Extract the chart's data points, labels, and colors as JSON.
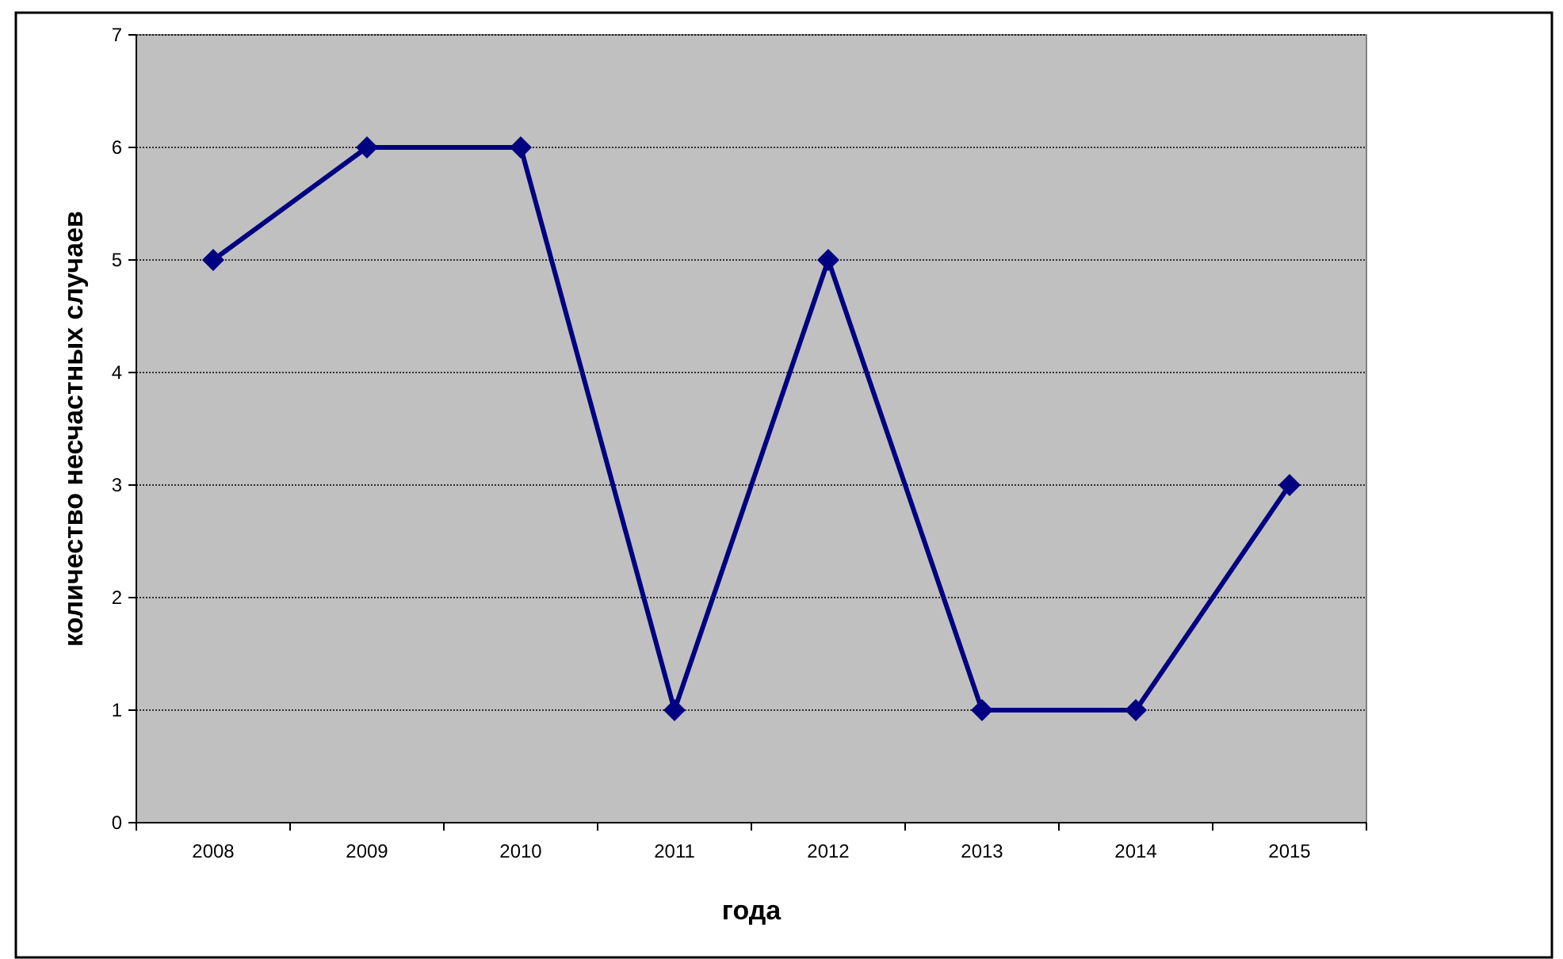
{
  "chart_data": {
    "type": "line",
    "xlabel": "года",
    "ylabel": "количество несчастных случаев",
    "categories": [
      "2008",
      "2009",
      "2010",
      "2011",
      "2012",
      "2013",
      "2014",
      "2015"
    ],
    "series": [
      {
        "color": "#000080",
        "values": [
          5,
          6,
          6,
          1,
          5,
          1,
          1,
          3
        ]
      }
    ],
    "ylim": [
      0,
      7
    ],
    "yticks": [
      0,
      1,
      2,
      3,
      4,
      5,
      6,
      7
    ],
    "grid": "y",
    "marker": "diamond",
    "line_style": "solid"
  }
}
